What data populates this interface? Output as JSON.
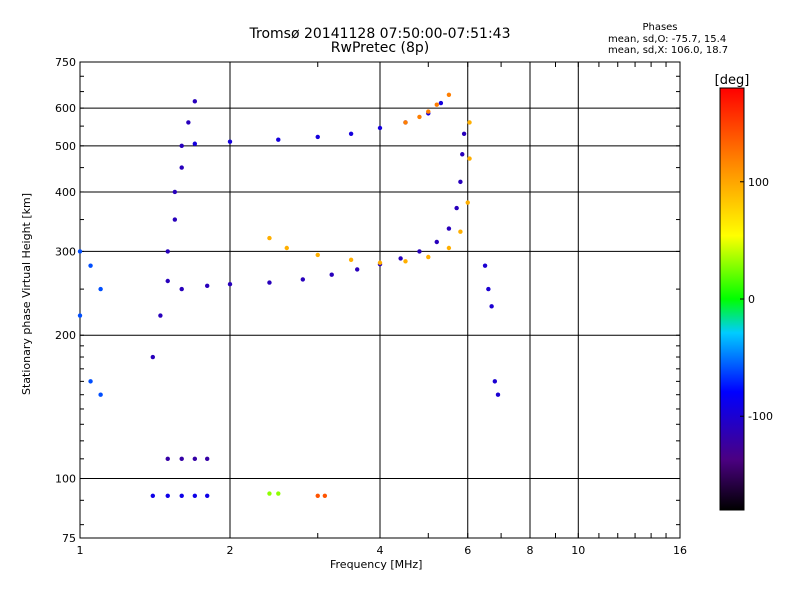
{
  "chart_data": {
    "type": "scatter",
    "title": "Tromsø 20141128 07:50:00-07:51:43",
    "subtitle": "RwPretec (8p)",
    "xlabel": "Frequency [MHz]",
    "ylabel": "Stationary phase Virtual Height [km]",
    "x_scale": "log",
    "y_scale": "log",
    "xlim": [
      1,
      16
    ],
    "ylim": [
      75,
      750
    ],
    "x_ticks": [
      1,
      2,
      4,
      6,
      8,
      10,
      16
    ],
    "x_tick_labels": [
      "1",
      "2",
      "4",
      "6",
      "8",
      "10",
      "16"
    ],
    "y_ticks": [
      75,
      100,
      200,
      300,
      400,
      500,
      600,
      750
    ],
    "y_tick_labels": [
      "75",
      "100",
      "200",
      "300",
      "400",
      "500",
      "600",
      "750"
    ],
    "grid": true,
    "phases": {
      "title": "Phases",
      "o_mode": "mean, sd,O: -75.7, 15.4",
      "x_mode": "mean, sd,X: 106.0, 18.7"
    },
    "colorbar": {
      "label": "[deg]",
      "range": [
        -180,
        180
      ],
      "ticks": [
        100,
        0,
        -100
      ],
      "tick_labels": [
        "100",
        "0",
        "-100"
      ]
    },
    "series": [
      {
        "points": [
          [
            1.6,
            250
          ],
          [
            1.8,
            254
          ],
          [
            2.0,
            256
          ],
          [
            2.4,
            258
          ],
          [
            2.8,
            262
          ],
          [
            3.2,
            268
          ],
          [
            3.6,
            275
          ],
          [
            4.0,
            282
          ],
          [
            4.4,
            290
          ],
          [
            4.8,
            300
          ],
          [
            5.2,
            314
          ],
          [
            5.5,
            335
          ],
          [
            5.7,
            370
          ],
          [
            5.8,
            420
          ],
          [
            5.85,
            480
          ],
          [
            5.9,
            530
          ]
        ],
        "phase": -110
      },
      {
        "points": [
          [
            1.7,
            505
          ],
          [
            2.0,
            510
          ],
          [
            2.5,
            515
          ],
          [
            3.0,
            522
          ],
          [
            3.5,
            530
          ],
          [
            4.0,
            545
          ],
          [
            4.5,
            560
          ],
          [
            5.0,
            585
          ],
          [
            5.3,
            615
          ]
        ],
        "phase": -95
      },
      {
        "points": [
          [
            1.4,
            180
          ],
          [
            1.45,
            220
          ],
          [
            1.5,
            260
          ],
          [
            1.5,
            300
          ],
          [
            1.55,
            350
          ],
          [
            1.55,
            400
          ],
          [
            1.6,
            450
          ],
          [
            1.6,
            500
          ],
          [
            1.65,
            560
          ],
          [
            1.7,
            620
          ]
        ],
        "phase": -110
      },
      {
        "points": [
          [
            2.4,
            320
          ],
          [
            2.6,
            305
          ],
          [
            3.0,
            295
          ],
          [
            3.5,
            288
          ],
          [
            4.0,
            284
          ],
          [
            4.5,
            286
          ],
          [
            5.0,
            292
          ],
          [
            5.5,
            305
          ],
          [
            5.8,
            330
          ],
          [
            6.0,
            380
          ],
          [
            6.05,
            470
          ],
          [
            6.05,
            560
          ]
        ],
        "phase": 95
      },
      {
        "points": [
          [
            4.5,
            560
          ],
          [
            4.8,
            575
          ],
          [
            5.0,
            590
          ],
          [
            5.2,
            610
          ],
          [
            5.5,
            640
          ]
        ],
        "phase": 120
      },
      {
        "points": [
          [
            1.5,
            110
          ],
          [
            1.6,
            110
          ],
          [
            1.7,
            110
          ],
          [
            1.8,
            110
          ]
        ],
        "phase": -120
      },
      {
        "points": [
          [
            1.4,
            92
          ],
          [
            1.5,
            92
          ],
          [
            1.6,
            92
          ],
          [
            1.7,
            92
          ],
          [
            1.8,
            92
          ]
        ],
        "phase": -90
      },
      {
        "points": [
          [
            2.4,
            93
          ],
          [
            2.5,
            93
          ]
        ],
        "phase": 30
      },
      {
        "points": [
          [
            3.0,
            92
          ],
          [
            3.1,
            92
          ]
        ],
        "phase": 140
      },
      {
        "points": [
          [
            1.0,
            300
          ],
          [
            1.05,
            280
          ],
          [
            1.1,
            250
          ],
          [
            1.0,
            220
          ],
          [
            1.05,
            160
          ],
          [
            1.1,
            150
          ]
        ],
        "phase": -60
      },
      {
        "points": [
          [
            6.5,
            280
          ],
          [
            6.6,
            250
          ],
          [
            6.7,
            230
          ],
          [
            6.8,
            160
          ],
          [
            6.9,
            150
          ]
        ],
        "phase": -100
      }
    ]
  }
}
